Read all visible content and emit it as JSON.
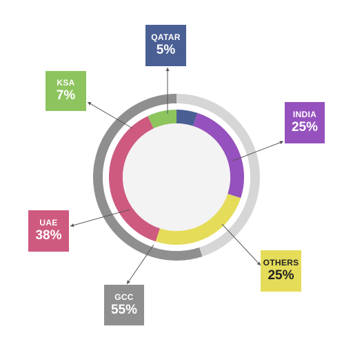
{
  "chart_data": {
    "type": "pie",
    "style": "donut",
    "inner_ring": [
      {
        "label": "QATAR",
        "value": 5,
        "display": "5%",
        "color": "#4a5f94"
      },
      {
        "label": "INDIA",
        "value": 25,
        "display": "25%",
        "color": "#9551bd"
      },
      {
        "label": "OTHERS",
        "value": 25,
        "display": "25%",
        "color": "#e5dc5a"
      },
      {
        "label": "UAE",
        "value": 38,
        "display": "38%",
        "color": "#ce5a7f"
      },
      {
        "label": "KSA",
        "value": 7,
        "display": "7%",
        "color": "#8dc45e"
      }
    ],
    "outer_ring": [
      {
        "label": "GCC",
        "value": 55,
        "display": "55%",
        "color": "#8f8f8f"
      },
      {
        "label": "",
        "value": 45,
        "color": "#d6d6d6"
      }
    ],
    "center_color": "#f3f3f3"
  }
}
